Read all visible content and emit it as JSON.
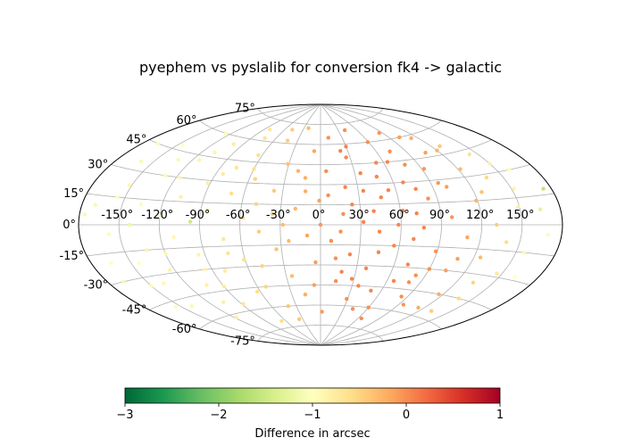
{
  "chart_data": {
    "type": "scatter",
    "projection": "aitoff",
    "title": "pyephem vs pyslalib for conversion fk4 -> galactic",
    "grid": true,
    "lon_ticks": [
      -150,
      -120,
      -90,
      -60,
      -30,
      0,
      30,
      60,
      90,
      120,
      150
    ],
    "lon_tick_labels": [
      "-150°",
      "-120°",
      "-90°",
      "-60°",
      "-30°",
      "0°",
      "30°",
      "60°",
      "90°",
      "120°",
      "150°"
    ],
    "lat_ticks": [
      -75,
      -60,
      -45,
      -30,
      -15,
      0,
      15,
      30,
      45,
      60,
      75
    ],
    "lat_tick_labels": [
      "-75°",
      "-60°",
      "-45°",
      "-30°",
      "-15°",
      "0°",
      "15°",
      "30°",
      "45°",
      "60°",
      "75°"
    ],
    "colorbar": {
      "label": "Difference in arcsec",
      "range": [
        -3,
        1
      ],
      "colormap": "RdYlGn_r",
      "ticks": [
        -3,
        -2,
        -1,
        0,
        1
      ],
      "tick_labels": [
        "−3",
        "−2",
        "−1",
        "0",
        "1"
      ]
    },
    "colormap_stops": [
      "#006837",
      "#1a9850",
      "#66bd63",
      "#a6d96a",
      "#d9ef8b",
      "#ffffbf",
      "#fee08b",
      "#fdae61",
      "#f46d43",
      "#d73027",
      "#a50026"
    ],
    "points": [
      [
        -170,
        10,
        -1.1
      ],
      [
        -165,
        -20,
        -1.0
      ],
      [
        -160,
        35,
        -1.1
      ],
      [
        -158,
        -5,
        -1.05
      ],
      [
        -152,
        22,
        -0.9
      ],
      [
        -150,
        -35,
        -0.95
      ],
      [
        -146,
        48,
        -1.0
      ],
      [
        -142,
        0,
        -1.2
      ],
      [
        -140,
        -50,
        -0.9
      ],
      [
        -136,
        12,
        -0.95
      ],
      [
        -133,
        -15,
        -0.85
      ],
      [
        -130,
        30,
        -0.9
      ],
      [
        -126,
        60,
        -0.9
      ],
      [
        -124,
        -28,
        -0.85
      ],
      [
        -120,
        5,
        -1.0
      ],
      [
        -117,
        -62,
        -0.8
      ],
      [
        -114,
        42,
        -0.85
      ],
      [
        -110,
        -8,
        -0.9
      ],
      [
        -108,
        18,
        -0.8
      ],
      [
        -104,
        -40,
        -0.8
      ],
      [
        -100,
        55,
        -0.75
      ],
      [
        -97,
        2,
        -1.5
      ],
      [
        -95,
        -20,
        -0.85
      ],
      [
        -92,
        28,
        -0.8
      ],
      [
        -88,
        -55,
        -0.7
      ],
      [
        -85,
        10,
        -0.75
      ],
      [
        -82,
        68,
        -0.7
      ],
      [
        -80,
        -32,
        -0.75
      ],
      [
        -76,
        40,
        -0.65
      ],
      [
        -73,
        -10,
        -0.7
      ],
      [
        -70,
        22,
        -0.6
      ],
      [
        -67,
        -70,
        -0.6
      ],
      [
        -64,
        50,
        -0.6
      ],
      [
        -61,
        -25,
        -0.6
      ],
      [
        -58,
        5,
        -0.55
      ],
      [
        -55,
        33,
        -0.5
      ],
      [
        -52,
        -45,
        -0.5
      ],
      [
        -49,
        15,
        -0.5
      ],
      [
        -46,
        -5,
        -0.45
      ],
      [
        -43,
        62,
        -0.45
      ],
      [
        -40,
        -60,
        -0.4
      ],
      [
        -37,
        25,
        -0.4
      ],
      [
        -34,
        -18,
        -0.35
      ],
      [
        -31,
        45,
        -0.35
      ],
      [
        -28,
        0,
        -0.3
      ],
      [
        -25,
        -38,
        -0.3
      ],
      [
        -22,
        72,
        -0.3
      ],
      [
        -19,
        12,
        -0.25
      ],
      [
        -16,
        -52,
        -0.2
      ],
      [
        -13,
        35,
        -0.2
      ],
      [
        -10,
        -8,
        -0.15
      ],
      [
        -7,
        55,
        -0.15
      ],
      [
        -4,
        -28,
        -0.1
      ],
      [
        -1,
        18,
        -0.1
      ],
      [
        2,
        -65,
        -0.05
      ],
      [
        5,
        40,
        0.0
      ],
      [
        8,
        -12,
        0.0
      ],
      [
        11,
        65,
        0.0
      ],
      [
        14,
        -42,
        0.0
      ],
      [
        17,
        8,
        0.0
      ],
      [
        20,
        28,
        0.05
      ],
      [
        23,
        -22,
        0.05
      ],
      [
        26,
        50,
        0.05
      ],
      [
        29,
        -55,
        0.0
      ],
      [
        32,
        2,
        0.05
      ],
      [
        35,
        38,
        0.05
      ],
      [
        38,
        -32,
        0.05
      ],
      [
        41,
        70,
        0.0
      ],
      [
        44,
        -5,
        0.05
      ],
      [
        47,
        20,
        0.05
      ],
      [
        50,
        -48,
        0.05
      ],
      [
        53,
        45,
        0.05
      ],
      [
        56,
        -15,
        0.05
      ],
      [
        59,
        60,
        0.0
      ],
      [
        62,
        10,
        0.05
      ],
      [
        65,
        -68,
        0.0
      ],
      [
        68,
        30,
        0.05
      ],
      [
        71,
        -28,
        0.05
      ],
      [
        74,
        52,
        0.0
      ],
      [
        77,
        -2,
        0.05
      ],
      [
        80,
        -40,
        0.0
      ],
      [
        83,
        18,
        0.0
      ],
      [
        86,
        65,
        -0.05
      ],
      [
        89,
        -18,
        0.0
      ],
      [
        92,
        38,
        -0.05
      ],
      [
        95,
        -55,
        -0.05
      ],
      [
        98,
        5,
        -0.05
      ],
      [
        101,
        25,
        -0.1
      ],
      [
        104,
        -30,
        -0.1
      ],
      [
        107,
        48,
        -0.1
      ],
      [
        110,
        -8,
        -0.15
      ],
      [
        113,
        58,
        -0.2
      ],
      [
        116,
        -45,
        -0.2
      ],
      [
        119,
        15,
        -0.25
      ],
      [
        122,
        35,
        -0.3
      ],
      [
        125,
        -20,
        -0.3
      ],
      [
        128,
        50,
        -0.4
      ],
      [
        131,
        0,
        -0.45
      ],
      [
        134,
        -35,
        -0.5
      ],
      [
        137,
        28,
        -0.55
      ],
      [
        140,
        -10,
        -0.6
      ],
      [
        143,
        42,
        -0.65
      ],
      [
        146,
        -28,
        -0.7
      ],
      [
        149,
        10,
        -0.8
      ],
      [
        152,
        20,
        -0.85
      ],
      [
        156,
        -15,
        -0.9
      ],
      [
        160,
        30,
        -0.95
      ],
      [
        165,
        8,
        -1.3
      ],
      [
        170,
        -5,
        -1.05
      ],
      [
        174,
        18,
        -1.6
      ],
      [
        -168,
        45,
        -1.05
      ],
      [
        -155,
        -48,
        -0.95
      ],
      [
        -138,
        -35,
        -0.9
      ],
      [
        -118,
        30,
        -0.9
      ],
      [
        -106,
        -52,
        -0.8
      ],
      [
        -90,
        -42,
        -0.75
      ],
      [
        -74,
        62,
        -0.65
      ],
      [
        -63,
        -48,
        -0.6
      ],
      [
        -48,
        70,
        -0.45
      ],
      [
        -36,
        -70,
        -0.4
      ],
      [
        -20,
        40,
        -0.25
      ],
      [
        -6,
        -45,
        -0.1
      ],
      [
        6,
        22,
        0.0
      ],
      [
        18,
        -35,
        0.05
      ],
      [
        30,
        58,
        0.05
      ],
      [
        42,
        -62,
        0.0
      ],
      [
        54,
        25,
        0.05
      ],
      [
        66,
        -40,
        0.05
      ],
      [
        78,
        42,
        0.0
      ],
      [
        90,
        -30,
        0.0
      ],
      [
        102,
        60,
        -0.1
      ],
      [
        114,
        -55,
        -0.2
      ],
      [
        126,
        20,
        -0.35
      ],
      [
        138,
        -45,
        -0.55
      ],
      [
        150,
        35,
        -0.8
      ],
      [
        162,
        -28,
        -1.0
      ],
      [
        0,
        0,
        -0.05
      ],
      [
        12,
        -25,
        0.0
      ],
      [
        24,
        15,
        0.05
      ],
      [
        36,
        -45,
        0.05
      ],
      [
        48,
        35,
        0.05
      ],
      [
        60,
        -60,
        0.0
      ],
      [
        72,
        8,
        0.05
      ],
      [
        84,
        -50,
        0.0
      ],
      [
        96,
        28,
        -0.05
      ],
      [
        108,
        -22,
        -0.1
      ],
      [
        120,
        48,
        -0.25
      ],
      [
        132,
        -55,
        -0.45
      ],
      [
        -12,
        25,
        -0.2
      ],
      [
        -24,
        -12,
        -0.3
      ],
      [
        -36,
        8,
        -0.4
      ],
      [
        -48,
        -30,
        -0.5
      ],
      [
        -60,
        40,
        -0.6
      ],
      [
        -72,
        -20,
        -0.65
      ],
      [
        -84,
        35,
        -0.75
      ],
      [
        -96,
        -30,
        -0.85
      ],
      [
        -108,
        48,
        -0.85
      ],
      [
        -120,
        -18,
        -0.9
      ],
      [
        -132,
        40,
        -0.9
      ],
      [
        -144,
        -22,
        -1.0
      ],
      [
        -156,
        15,
        -1.05
      ],
      [
        -168,
        -30,
        -1.1
      ],
      [
        -176,
        5,
        -1.1
      ],
      [
        58,
        0,
        0.05
      ],
      [
        64,
        45,
        0.05
      ],
      [
        70,
        -10,
        0.05
      ],
      [
        76,
        25,
        0.05
      ],
      [
        82,
        -35,
        0.0
      ],
      [
        40,
        10,
        0.05
      ],
      [
        45,
        -20,
        0.05
      ],
      [
        34,
        25,
        0.05
      ],
      [
        28,
        -40,
        0.05
      ],
      [
        22,
        55,
        0.05
      ],
      [
        15,
        -5,
        0.0
      ]
    ]
  }
}
